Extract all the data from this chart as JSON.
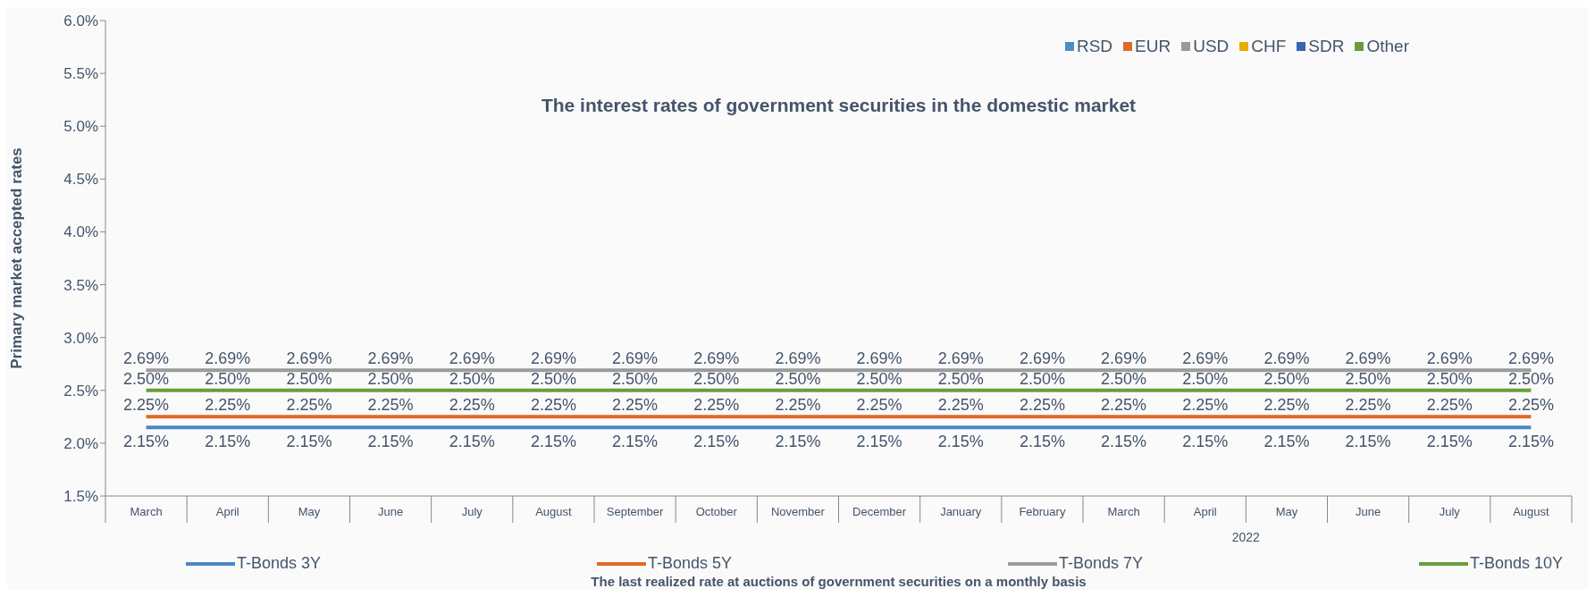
{
  "chart_data": {
    "type": "line",
    "title": "The interest rates of government securities in the domestic market",
    "ylabel": "Primary market accepted rates",
    "xlabel": "The last realized rate at auctions of government securities on a monthly basis",
    "annotations": [
      "2022"
    ],
    "categories": [
      "March",
      "April",
      "May",
      "June",
      "July",
      "August",
      "September",
      "October",
      "November",
      "December",
      "January",
      "February",
      "March",
      "April",
      "May",
      "June",
      "July",
      "August"
    ],
    "series": [
      {
        "name": "T-Bonds 3Y",
        "color": "#4a88c6",
        "values": [
          2.15,
          2.15,
          2.15,
          2.15,
          2.15,
          2.15,
          2.15,
          2.15,
          2.15,
          2.15,
          2.15,
          2.15,
          2.15,
          2.15,
          2.15,
          2.15,
          2.15,
          2.15
        ],
        "value_labels": [
          "2.15%",
          "2.15%",
          "2.15%",
          "2.15%",
          "2.15%",
          "2.15%",
          "2.15%",
          "2.15%",
          "2.15%",
          "2.15%",
          "2.15%",
          "2.15%",
          "2.15%",
          "2.15%",
          "2.15%",
          "2.15%",
          "2.15%",
          "2.15%"
        ]
      },
      {
        "name": "T-Bonds 5Y",
        "color": "#dd6a28",
        "values": [
          2.25,
          2.25,
          2.25,
          2.25,
          2.25,
          2.25,
          2.25,
          2.25,
          2.25,
          2.25,
          2.25,
          2.25,
          2.25,
          2.25,
          2.25,
          2.25,
          2.25,
          2.25
        ],
        "value_labels": [
          "2.25%",
          "2.25%",
          "2.25%",
          "2.25%",
          "2.25%",
          "2.25%",
          "2.25%",
          "2.25%",
          "2.25%",
          "2.25%",
          "2.25%",
          "2.25%",
          "2.25%",
          "2.25%",
          "2.25%",
          "2.25%",
          "2.25%",
          "2.25%"
        ]
      },
      {
        "name": "T-Bonds 7Y",
        "color": "#9b9b9b",
        "values": [
          2.69,
          2.69,
          2.69,
          2.69,
          2.69,
          2.69,
          2.69,
          2.69,
          2.69,
          2.69,
          2.69,
          2.69,
          2.69,
          2.69,
          2.69,
          2.69,
          2.69,
          2.69
        ],
        "value_labels": [
          "2.69%",
          "2.69%",
          "2.69%",
          "2.69%",
          "2.69%",
          "2.69%",
          "2.69%",
          "2.69%",
          "2.69%",
          "2.69%",
          "2.69%",
          "2.69%",
          "2.69%",
          "2.69%",
          "2.69%",
          "2.69%",
          "2.69%",
          "2.69%"
        ]
      },
      {
        "name": "T-Bonds 10Y",
        "color": "#6a9e3a",
        "values": [
          2.5,
          2.5,
          2.5,
          2.5,
          2.5,
          2.5,
          2.5,
          2.5,
          2.5,
          2.5,
          2.5,
          2.5,
          2.5,
          2.5,
          2.5,
          2.5,
          2.5,
          2.5
        ],
        "value_labels": [
          "2.50%",
          "2.50%",
          "2.50%",
          "2.50%",
          "2.50%",
          "2.50%",
          "2.50%",
          "2.50%",
          "2.50%",
          "2.50%",
          "2.50%",
          "2.50%",
          "2.50%",
          "2.50%",
          "2.50%",
          "2.50%",
          "2.50%",
          "2.50%"
        ]
      },
      {
        "name": "RSD",
        "color": "#4f8dc6",
        "values": [
          null,
          null,
          null,
          null,
          null,
          null,
          null,
          null,
          null,
          null,
          null,
          null,
          null,
          null,
          null,
          null,
          null,
          null
        ]
      },
      {
        "name": "EUR",
        "color": "#dc6b2a",
        "values": [
          null,
          null,
          null,
          null,
          null,
          null,
          null,
          null,
          null,
          null,
          null,
          null,
          null,
          null,
          null,
          null,
          null,
          null
        ]
      },
      {
        "name": "USD",
        "color": "#999999",
        "values": [
          null,
          null,
          null,
          null,
          null,
          null,
          null,
          null,
          null,
          null,
          null,
          null,
          null,
          null,
          null,
          null,
          null,
          null
        ]
      },
      {
        "name": "CHF",
        "color": "#e7ac00",
        "values": [
          null,
          null,
          null,
          null,
          null,
          null,
          null,
          null,
          null,
          null,
          null,
          null,
          null,
          null,
          null,
          null,
          null,
          null
        ]
      },
      {
        "name": "SDR",
        "color": "#3a62b4",
        "values": [
          null,
          null,
          null,
          null,
          null,
          null,
          null,
          null,
          null,
          null,
          null,
          null,
          null,
          null,
          null,
          null,
          null,
          null
        ]
      },
      {
        "name": "Other",
        "color": "#679c3c",
        "values": [
          null,
          null,
          null,
          null,
          null,
          null,
          null,
          null,
          null,
          null,
          null,
          null,
          null,
          null,
          null,
          null,
          null,
          null
        ]
      }
    ],
    "ylim": [
      1.5,
      6.0
    ],
    "yticks": [
      {
        "value": 1.5,
        "label": "1.5%"
      },
      {
        "value": 2.0,
        "label": "2.0%"
      },
      {
        "value": 2.5,
        "label": "2.5%"
      },
      {
        "value": 3.0,
        "label": "3.0%"
      },
      {
        "value": 3.5,
        "label": "3.5%"
      },
      {
        "value": 4.0,
        "label": "4.0%"
      },
      {
        "value": 4.5,
        "label": "4.5%"
      },
      {
        "value": 5.0,
        "label": "5.0%"
      },
      {
        "value": 5.5,
        "label": "5.5%"
      },
      {
        "value": 6.0,
        "label": "6.0%"
      }
    ],
    "grid": false,
    "legend": "bottom",
    "marker": "none",
    "line_style": "solid"
  }
}
